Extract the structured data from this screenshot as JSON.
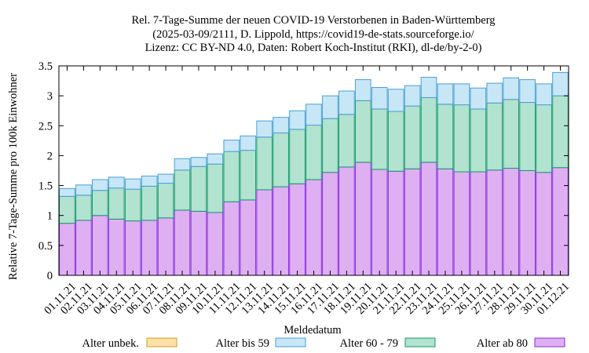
{
  "chart_data": {
    "type": "bar",
    "stacked": true,
    "title": [
      "Rel. 7-Tage-Summe der neuen COVID-19 Verstorbenen in Baden-Württemberg",
      "(2025-03-09/2111, D. Lippold, https://covid19-de-stats.sourceforge.io/",
      "Lizenz: CC BY-ND 4.0, Daten: Robert Koch-Institut (RKI), dl-de/by-2-0)"
    ],
    "xlabel": "Meldedatum",
    "ylabel": "Relative 7-Tage-Summe pro 100k Einwohner",
    "ylim": [
      0,
      3.5
    ],
    "yticks": [
      "0",
      "0.5",
      "1",
      "1.5",
      "2",
      "2.5",
      "3",
      "3.5"
    ],
    "categories": [
      "01.11.21",
      "02.11.21",
      "03.11.21",
      "04.11.21",
      "05.11.21",
      "06.11.21",
      "07.11.21",
      "08.11.21",
      "09.11.21",
      "10.11.21",
      "11.11.21",
      "12.11.21",
      "13.11.21",
      "14.11.21",
      "15.11.21",
      "16.11.21",
      "17.11.21",
      "18.11.21",
      "19.11.21",
      "20.11.21",
      "21.11.21",
      "22.11.21",
      "23.11.21",
      "24.11.21",
      "25.11.21",
      "26.11.21",
      "27.11.21",
      "28.11.21",
      "29.11.21",
      "30.11.21",
      "01.12.21"
    ],
    "series": [
      {
        "name": "Alter ab 80",
        "fill": "#deb0f2",
        "stroke": "#8a2be2",
        "values": [
          0.87,
          0.92,
          1.0,
          0.94,
          0.91,
          0.92,
          0.96,
          1.09,
          1.07,
          1.05,
          1.23,
          1.26,
          1.43,
          1.48,
          1.53,
          1.6,
          1.72,
          1.81,
          1.89,
          1.77,
          1.74,
          1.78,
          1.89,
          1.78,
          1.73,
          1.73,
          1.76,
          1.79,
          1.75,
          1.72,
          1.8
        ]
      },
      {
        "name": "Alter 60 - 79",
        "fill": "#b2e2d0",
        "stroke": "#159b6d",
        "values": [
          0.45,
          0.42,
          0.42,
          0.52,
          0.53,
          0.57,
          0.58,
          0.67,
          0.75,
          0.81,
          0.84,
          0.83,
          0.88,
          0.9,
          0.91,
          0.91,
          0.9,
          0.88,
          1.03,
          1.01,
          1.0,
          1.05,
          1.08,
          1.08,
          1.12,
          1.05,
          1.12,
          1.15,
          1.14,
          1.13,
          1.2
        ]
      },
      {
        "name": "Alter bis 59",
        "fill": "#c7e7f7",
        "stroke": "#4a9fd6",
        "values": [
          0.13,
          0.17,
          0.18,
          0.18,
          0.17,
          0.17,
          0.15,
          0.19,
          0.15,
          0.17,
          0.19,
          0.24,
          0.27,
          0.26,
          0.31,
          0.35,
          0.38,
          0.39,
          0.35,
          0.36,
          0.37,
          0.34,
          0.34,
          0.34,
          0.35,
          0.35,
          0.33,
          0.36,
          0.38,
          0.35,
          0.39
        ]
      },
      {
        "name": "Alter unbek.",
        "fill": "#fde0a8",
        "stroke": "#d4a017",
        "values": [
          0,
          0,
          0,
          0,
          0,
          0,
          0,
          0,
          0,
          0,
          0,
          0,
          0,
          0,
          0,
          0,
          0,
          0,
          0,
          0,
          0,
          0,
          0,
          0,
          0,
          0,
          0,
          0,
          0,
          0,
          0
        ]
      }
    ],
    "legend": {
      "placement": "bottom",
      "order": [
        "Alter unbek.",
        "Alter bis 59",
        "Alter 60 - 79",
        "Alter ab 80"
      ]
    }
  }
}
